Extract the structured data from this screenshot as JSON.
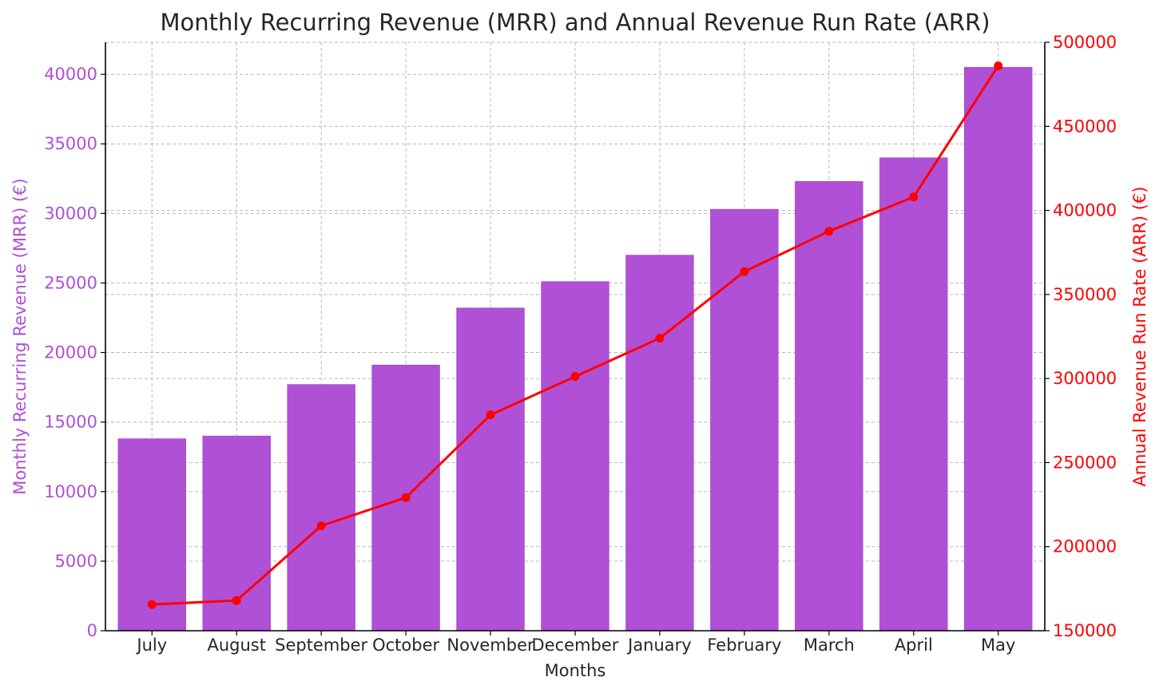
{
  "chart_data": {
    "type": "bar",
    "title": "Monthly Recurring Revenue (MRR) and Annual Revenue Run Rate (ARR)",
    "xlabel": "Months",
    "categories": [
      "July",
      "August",
      "September",
      "October",
      "November",
      "December",
      "January",
      "February",
      "March",
      "April",
      "May"
    ],
    "grid": true,
    "series": [
      {
        "type": "bar",
        "axis": "left",
        "color": "#b050d6",
        "values": [
          13800,
          14000,
          17700,
          19100,
          23200,
          25100,
          27000,
          30300,
          32300,
          34000,
          40500
        ]
      },
      {
        "type": "line",
        "axis": "right",
        "color": "#ff0000",
        "values": [
          165600,
          168000,
          212400,
          229200,
          278400,
          301200,
          324000,
          363600,
          387600,
          408000,
          486000
        ]
      }
    ],
    "y_left": {
      "label": "Monthly Recurring Revenue (MRR) (€)",
      "color": "#b050d6",
      "ylim": [
        0,
        42300
      ],
      "ticks": [
        "0",
        "5000",
        "10000",
        "15000",
        "20000",
        "25000",
        "30000",
        "35000",
        "40000"
      ]
    },
    "y_right": {
      "label": "Annual Revenue Run Rate (ARR) (€)",
      "color": "#ff0000",
      "ylim": [
        150000,
        500000
      ],
      "ticks": [
        "150000",
        "200000",
        "250000",
        "300000",
        "350000",
        "400000",
        "450000",
        "500000"
      ]
    }
  }
}
